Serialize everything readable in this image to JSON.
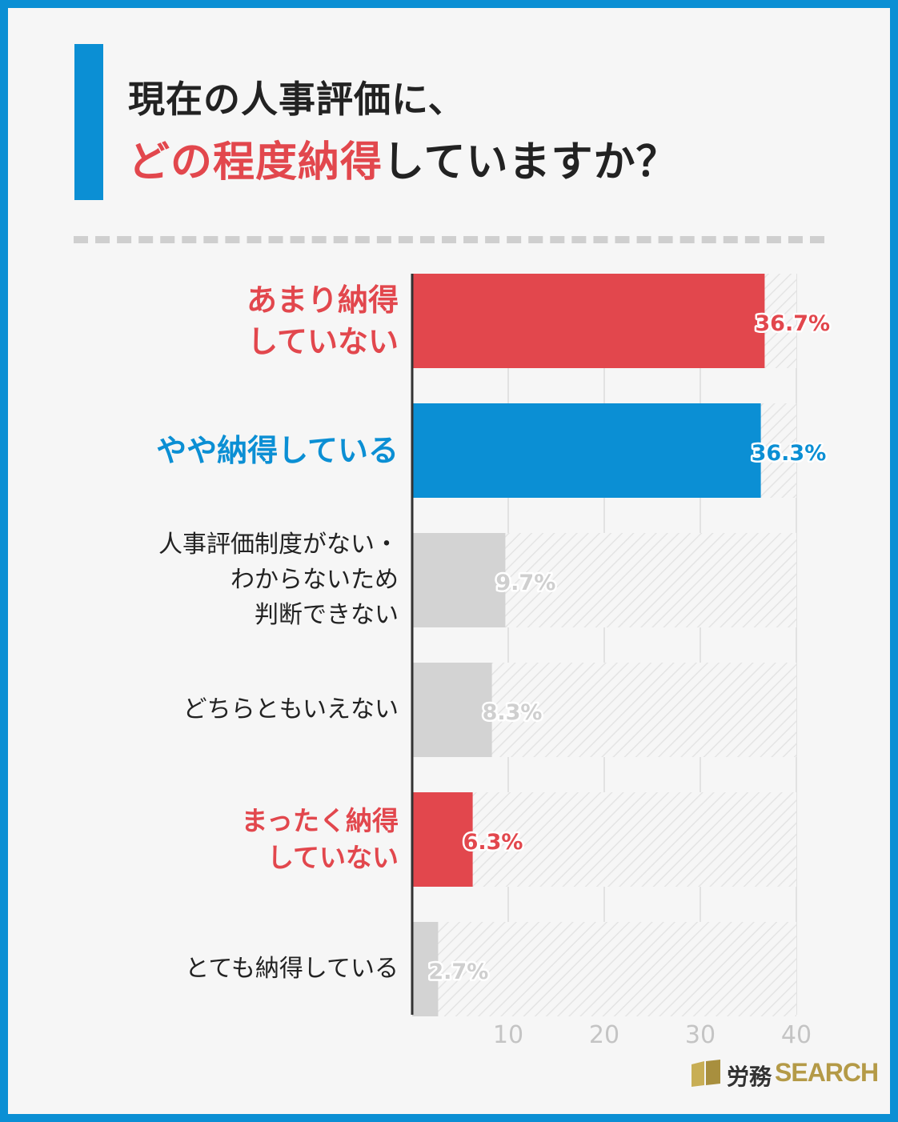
{
  "title": {
    "line1": "現在の人事評価に、",
    "line2_highlight": "どの程度納得",
    "line2_rest": "していますか？"
  },
  "colors": {
    "background_border": "#0b8fd4",
    "card": "#f6f6f6",
    "red": "#e2474d",
    "blue": "#0b8fd4",
    "gray": "#d3d3d3",
    "text": "#222222"
  },
  "chart_data": {
    "type": "bar",
    "orientation": "horizontal",
    "categories": [
      "あまり納得\nしていない",
      "やや納得している",
      "人事評価制度がない・\nわからないため\n判断できない",
      "どちらともいえない",
      "まったく納得\nしていない",
      "とても納得している"
    ],
    "values": [
      36.7,
      36.3,
      9.7,
      8.3,
      6.3,
      2.7
    ],
    "value_labels": [
      "36.7%",
      "36.3%",
      "9.7%",
      "8.3%",
      "6.3%",
      "2.7%"
    ],
    "bar_colors": [
      "#e2474d",
      "#0b8fd4",
      "#d3d3d3",
      "#d3d3d3",
      "#e2474d",
      "#d3d3d3"
    ],
    "label_colors": [
      "#e2474d",
      "#0b8fd4",
      "#222222",
      "#222222",
      "#e2474d",
      "#222222"
    ],
    "label_styles": [
      "big",
      "big",
      "small",
      "small",
      "mid",
      "small"
    ],
    "xticks": [
      "10",
      "20",
      "30",
      "40"
    ],
    "xtick_values": [
      10,
      20,
      30,
      40
    ],
    "xlim": [
      0,
      40
    ],
    "grid": true
  },
  "logo": {
    "text_jp": "労務",
    "text_en": "SEARCH"
  }
}
